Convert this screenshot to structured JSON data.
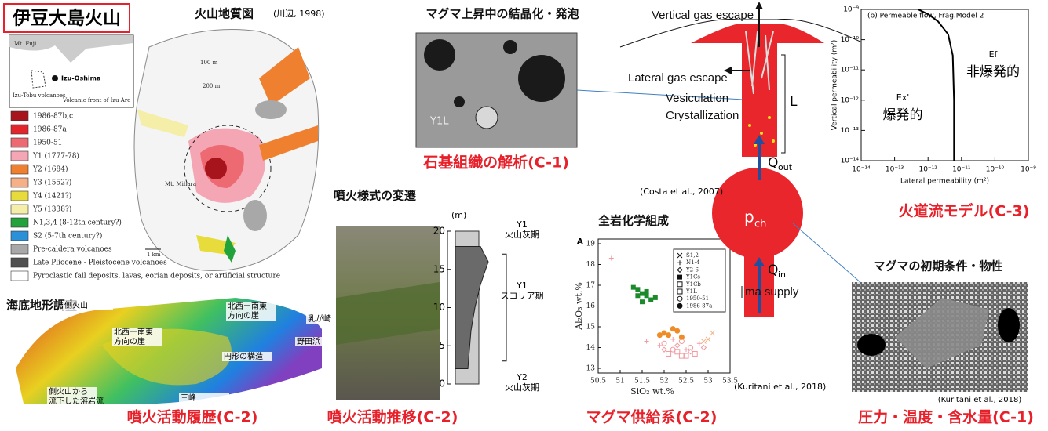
{
  "title": "伊豆大島火山",
  "geology_map": {
    "title": "火山地質図",
    "citation": "(川辺, 1998)",
    "inset_labels": [
      "Mt. Fuji",
      "Izu-Oshima",
      "Izu-Tobu volcanoes",
      "Volcanic front of Izu Arc"
    ],
    "map_labels": [
      "100 m",
      "200 m",
      "Mt. Mihara",
      "1 km"
    ],
    "legend": [
      {
        "label": "1986-87b,c",
        "color": "#a8141c"
      },
      {
        "label": "1986-87a",
        "color": "#e2262c"
      },
      {
        "label": "1950-51",
        "color": "#ee6a72"
      },
      {
        "label": "Y1 (1777-78)",
        "color": "#f4a6b4"
      },
      {
        "label": "Y2 (1684)",
        "color": "#ee8030"
      },
      {
        "label": "Y3 (1552?)",
        "color": "#f6b088"
      },
      {
        "label": "Y4 (1421?)",
        "color": "#e8dc3c"
      },
      {
        "label": "Y5 (1338?)",
        "color": "#f4eea8"
      },
      {
        "label": "N1,3,4 (8-12th century?)",
        "color": "#22a23a"
      },
      {
        "label": "S2 (5-7th century?)",
        "color": "#2a90d8"
      },
      {
        "label": "Pre-caldera volcanoes",
        "color": "#a8a8a8"
      },
      {
        "label": "Late Pliocene - Pleistocene volcanoes",
        "color": "#505050"
      },
      {
        "label": "Pyroclastic fall deposits, lavas, eorian deposits, or artificial structure",
        "color": "#ffffff"
      }
    ]
  },
  "bathymetry": {
    "title": "海底地形調査",
    "labels": [
      [
        "側火山"
      ],
      [
        "北西ー南東",
        "方向の崖"
      ],
      [
        "北西ー南東",
        "方向の崖"
      ],
      [
        "乳が崎"
      ],
      [
        "野田浜"
      ],
      [
        "円形の構造"
      ],
      [
        "側火山から",
        "流下した溶岩流"
      ],
      [
        "三峰"
      ]
    ],
    "caption": "噴火活動履歴(C-2)"
  },
  "groundmass": {
    "title": "マグマ上昇中の結晶化・発泡",
    "sample": "Y1L",
    "caption": "石基組織の解析(C-1)"
  },
  "eruption_style": {
    "title": "噴火様式の変遷",
    "axis_unit": "(m)",
    "ylim": [
      0,
      20
    ],
    "yticks": [
      0,
      5,
      10,
      15,
      20
    ],
    "units": [
      {
        "name": "Y1",
        "phase": "火山灰期"
      },
      {
        "name": "Y1",
        "phase": "スコリア期"
      },
      {
        "name": "Y2",
        "phase": "火山灰期"
      }
    ],
    "caption": "噴火活動推移(C-2)"
  },
  "whole_rock": {
    "type": "scatter",
    "title": "全岩化学組成",
    "panel": "A",
    "x_label": "SiO₂ wt.%",
    "y_label": "Al₂O₃ wt.%",
    "xlim": [
      50.5,
      53.5
    ],
    "ylim": [
      13,
      19
    ],
    "xticks": [
      50.5,
      51,
      51.5,
      52,
      52.5,
      53,
      53.5
    ],
    "yticks": [
      13,
      14,
      15,
      16,
      17,
      18,
      19
    ],
    "series": [
      {
        "name": "S1,2",
        "marker": "x",
        "color": "#f4b183",
        "x": [
          53.1,
          53.0,
          52.9
        ],
        "y": [
          14.7,
          14.4,
          14.3
        ]
      },
      {
        "name": "N1-4",
        "marker": "plus",
        "color": "#f09aa0",
        "x": [
          50.8,
          51.6,
          51.9,
          52.2,
          52.5,
          52.8
        ],
        "y": [
          18.3,
          14.3,
          14.1,
          14.4,
          13.9,
          14.2
        ]
      },
      {
        "name": "Y2-6",
        "marker": "diamond",
        "color": "#f09aa0",
        "x": [
          52.0,
          52.3,
          52.6,
          52.9
        ],
        "y": [
          13.9,
          14.1,
          13.8,
          14.0
        ]
      },
      {
        "name": "Y1Cs",
        "marker": "square",
        "color": "#1a8a2a",
        "x": [
          51.3,
          51.4,
          51.5,
          51.6,
          51.7,
          51.5,
          51.6,
          51.4,
          51.8
        ],
        "y": [
          16.9,
          16.8,
          16.6,
          16.5,
          16.3,
          16.2,
          16.7,
          16.5,
          16.4
        ]
      },
      {
        "name": "Y1Cb",
        "marker": "square-open",
        "color": "#f09aa0",
        "x": [
          52.1,
          52.4
        ],
        "y": [
          13.7,
          13.6
        ]
      },
      {
        "name": "Y1L",
        "marker": "square-open",
        "color": "#f09aa0",
        "x": [
          52.5,
          52.7,
          52.3
        ],
        "y": [
          13.6,
          13.7,
          13.8
        ]
      },
      {
        "name": "1950-51",
        "marker": "circle-open",
        "color": "#f09aa0",
        "x": [
          52.0,
          52.2,
          52.4,
          52.6
        ],
        "y": [
          14.2,
          13.9,
          14.3,
          14.0
        ]
      },
      {
        "name": "1986-87a",
        "marker": "circle",
        "color": "#f08c28",
        "x": [
          51.9,
          52.0,
          52.1,
          52.3,
          52.4,
          52.2
        ],
        "y": [
          14.6,
          14.7,
          14.6,
          14.8,
          14.5,
          14.9
        ]
      }
    ],
    "citation": "(Kuritani et al., 2018)",
    "caption": "マグマ供給系(C-2)"
  },
  "conduit": {
    "vertical": "Vertical gas escape",
    "lateral": "Lateral gas escape",
    "vesiculation": "Vesiculation",
    "crystallization": "Crystallization",
    "length": "L",
    "q_out": {
      "main": "Q",
      "sub": "out"
    },
    "p_ch": {
      "main": "p",
      "sub": "ch"
    },
    "q_in": {
      "main": "Q",
      "sub": "in"
    },
    "supply": "ma supply",
    "citation": "(Costa et al., 2007)"
  },
  "permeable_flow": {
    "type": "line",
    "title": "(b) Permeable flow, Frag.Model 2",
    "x_label": "Lateral permeability (m²)",
    "y_label": "Vertical permeability (m²)",
    "log": true,
    "xlim": [
      1e-14,
      1e-09
    ],
    "ylim": [
      1e-14,
      1e-09
    ],
    "xticks": [
      {
        "value": 1e-14,
        "label": "10⁻¹⁴"
      },
      {
        "value": 1e-13,
        "label": "10⁻¹³"
      },
      {
        "value": 1e-12,
        "label": "10⁻¹²"
      },
      {
        "value": 1e-11,
        "label": "10⁻¹¹"
      },
      {
        "value": 1e-10,
        "label": "10⁻¹⁰"
      },
      {
        "value": 1e-09,
        "label": "10⁻⁹"
      }
    ],
    "yticks": [
      {
        "value": 1e-14,
        "label": "10⁻¹⁴"
      },
      {
        "value": 1e-13,
        "label": "10⁻¹³"
      },
      {
        "value": 1e-12,
        "label": "10⁻¹²"
      },
      {
        "value": 1e-11,
        "label": "10⁻¹¹"
      },
      {
        "value": 1e-10,
        "label": "10⁻¹⁰"
      },
      {
        "value": 1e-09,
        "label": "10⁻⁹"
      }
    ],
    "x": [
      6e-12,
      6e-12,
      5.5e-12,
      4e-12,
      2e-12,
      1e-12,
      5e-13
    ],
    "y": [
      1e-14,
      1e-12,
      3e-11,
      1.5e-10,
      4e-10,
      7e-10,
      1e-09
    ],
    "color": "#000000",
    "regions": [
      {
        "name": "Ex'",
        "label": "爆発的"
      },
      {
        "name": "Ef",
        "label": "非爆発的"
      }
    ],
    "caption": "火道流モデル(C-3)"
  },
  "initial_conditions": {
    "title": "マグマの初期条件・物性",
    "citation": "(Kuritani et al., 2018)",
    "caption": "圧力・温度・含水量(C-1)"
  }
}
